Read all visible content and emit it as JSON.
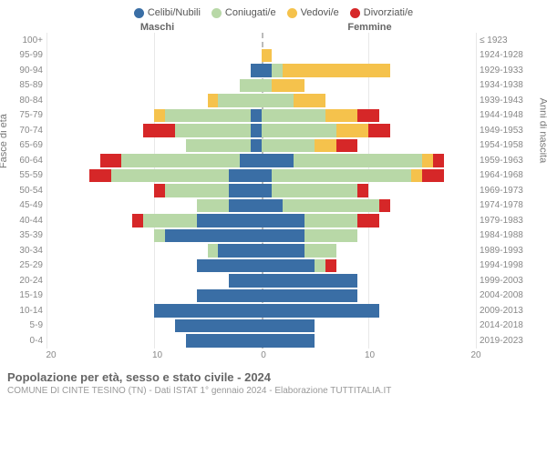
{
  "chart": {
    "type": "population-pyramid",
    "legend": [
      {
        "label": "Celibi/Nubili",
        "color": "#3a6ea5"
      },
      {
        "label": "Coniugati/e",
        "color": "#b8d8a7"
      },
      {
        "label": "Vedovi/e",
        "color": "#f5c24c"
      },
      {
        "label": "Divorziati/e",
        "color": "#d62728"
      }
    ],
    "header_male": "Maschi",
    "header_female": "Femmine",
    "ylabel_left": "Fasce di età",
    "ylabel_right": "Anni di nascita",
    "xmax": 20,
    "xticks": [
      0,
      10,
      20
    ],
    "grid_color": "#e8e8e8",
    "centerline_color": "#bbbbbb",
    "background_color": "#ffffff",
    "label_fontsize": 10,
    "rows": [
      {
        "age": "100+",
        "birth": "≤ 1923",
        "m": [
          0,
          0,
          0,
          0
        ],
        "f": [
          0,
          0,
          0,
          0
        ]
      },
      {
        "age": "95-99",
        "birth": "1924-1928",
        "m": [
          0,
          0,
          0,
          0
        ],
        "f": [
          0,
          0,
          1,
          0
        ]
      },
      {
        "age": "90-94",
        "birth": "1929-1933",
        "m": [
          1,
          0,
          0,
          0
        ],
        "f": [
          1,
          1,
          10,
          0
        ]
      },
      {
        "age": "85-89",
        "birth": "1934-1938",
        "m": [
          0,
          2,
          0,
          0
        ],
        "f": [
          0,
          1,
          3,
          0
        ]
      },
      {
        "age": "80-84",
        "birth": "1939-1943",
        "m": [
          0,
          4,
          1,
          0
        ],
        "f": [
          0,
          3,
          3,
          0
        ]
      },
      {
        "age": "75-79",
        "birth": "1944-1948",
        "m": [
          1,
          8,
          1,
          0
        ],
        "f": [
          0,
          6,
          3,
          2
        ]
      },
      {
        "age": "70-74",
        "birth": "1949-1953",
        "m": [
          1,
          7,
          0,
          3
        ],
        "f": [
          0,
          7,
          3,
          2
        ]
      },
      {
        "age": "65-69",
        "birth": "1954-1958",
        "m": [
          1,
          6,
          0,
          0
        ],
        "f": [
          0,
          5,
          2,
          2
        ]
      },
      {
        "age": "60-64",
        "birth": "1959-1963",
        "m": [
          2,
          11,
          0,
          2
        ],
        "f": [
          3,
          12,
          1,
          1
        ]
      },
      {
        "age": "55-59",
        "birth": "1964-1968",
        "m": [
          3,
          11,
          0,
          2
        ],
        "f": [
          1,
          13,
          1,
          2
        ]
      },
      {
        "age": "50-54",
        "birth": "1969-1973",
        "m": [
          3,
          6,
          0,
          1
        ],
        "f": [
          1,
          8,
          0,
          1
        ]
      },
      {
        "age": "45-49",
        "birth": "1974-1978",
        "m": [
          3,
          3,
          0,
          0
        ],
        "f": [
          2,
          9,
          0,
          1
        ]
      },
      {
        "age": "40-44",
        "birth": "1979-1983",
        "m": [
          6,
          5,
          0,
          1
        ],
        "f": [
          4,
          5,
          0,
          2
        ]
      },
      {
        "age": "35-39",
        "birth": "1984-1988",
        "m": [
          9,
          1,
          0,
          0
        ],
        "f": [
          4,
          5,
          0,
          0
        ]
      },
      {
        "age": "30-34",
        "birth": "1989-1993",
        "m": [
          4,
          1,
          0,
          0
        ],
        "f": [
          4,
          3,
          0,
          0
        ]
      },
      {
        "age": "25-29",
        "birth": "1994-1998",
        "m": [
          6,
          0,
          0,
          0
        ],
        "f": [
          5,
          1,
          0,
          1
        ]
      },
      {
        "age": "20-24",
        "birth": "1999-2003",
        "m": [
          3,
          0,
          0,
          0
        ],
        "f": [
          9,
          0,
          0,
          0
        ]
      },
      {
        "age": "15-19",
        "birth": "2004-2008",
        "m": [
          6,
          0,
          0,
          0
        ],
        "f": [
          9,
          0,
          0,
          0
        ]
      },
      {
        "age": "10-14",
        "birth": "2009-2013",
        "m": [
          10,
          0,
          0,
          0
        ],
        "f": [
          11,
          0,
          0,
          0
        ]
      },
      {
        "age": "5-9",
        "birth": "2014-2018",
        "m": [
          8,
          0,
          0,
          0
        ],
        "f": [
          5,
          0,
          0,
          0
        ]
      },
      {
        "age": "0-4",
        "birth": "2019-2023",
        "m": [
          7,
          0,
          0,
          0
        ],
        "f": [
          5,
          0,
          0,
          0
        ]
      }
    ]
  },
  "footer": {
    "title": "Popolazione per età, sesso e stato civile - 2024",
    "subtitle": "COMUNE DI CINTE TESINO (TN) - Dati ISTAT 1° gennaio 2024 - Elaborazione TUTTITALIA.IT"
  }
}
